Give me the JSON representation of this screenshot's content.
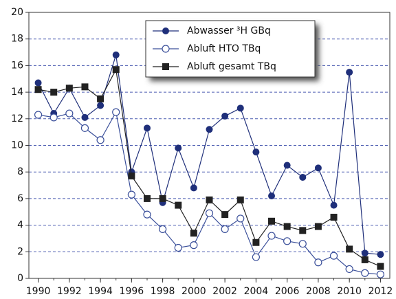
{
  "chart_data": {
    "type": "line",
    "x": [
      1990,
      1991,
      1992,
      1993,
      1994,
      1995,
      1996,
      1997,
      1998,
      1999,
      2000,
      2001,
      2002,
      2003,
      2004,
      2005,
      2006,
      2007,
      2008,
      2009,
      2010,
      2011,
      2012
    ],
    "series": [
      {
        "name": "Abwasser ³H GBq",
        "color": "#1f2f7a",
        "marker": "circle",
        "values": [
          14.7,
          12.4,
          14.3,
          12.1,
          13.0,
          16.8,
          8.0,
          11.3,
          5.7,
          9.8,
          6.8,
          11.2,
          12.2,
          12.8,
          9.5,
          6.2,
          8.5,
          7.6,
          8.3,
          5.5,
          15.5,
          1.9,
          1.8
        ]
      },
      {
        "name": "Abluft HTO TBq",
        "color": "#3a4f9a",
        "marker": "open-circle",
        "values": [
          12.3,
          12.1,
          12.4,
          11.3,
          10.4,
          12.5,
          6.3,
          4.8,
          3.7,
          2.3,
          2.5,
          4.9,
          3.7,
          4.5,
          1.6,
          3.2,
          2.8,
          2.6,
          1.2,
          1.7,
          0.7,
          0.4,
          0.3
        ]
      },
      {
        "name": "Abluft gesamt TBq",
        "color": "#222222",
        "marker": "square",
        "values": [
          14.2,
          14.0,
          14.3,
          14.4,
          13.5,
          15.7,
          7.7,
          6.0,
          6.0,
          5.5,
          3.4,
          5.9,
          4.8,
          5.9,
          2.7,
          4.3,
          3.9,
          3.6,
          3.9,
          4.6,
          2.2,
          1.4,
          0.9
        ]
      }
    ],
    "xlim": [
      1989.4,
      2012.6
    ],
    "xticks": [
      1990,
      1992,
      1994,
      1996,
      1998,
      2000,
      2002,
      2004,
      2006,
      2008,
      2010,
      2012
    ],
    "ylim": [
      0,
      20
    ],
    "yticks": [
      0,
      2,
      4,
      6,
      8,
      10,
      12,
      14,
      16,
      18,
      20
    ],
    "grid": true
  }
}
